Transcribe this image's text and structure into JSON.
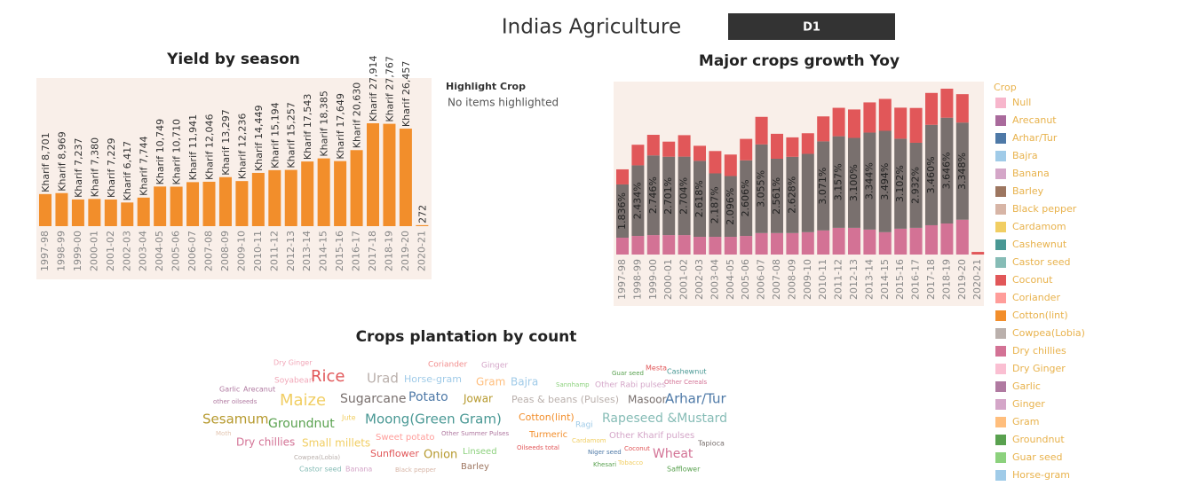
{
  "header": {
    "title": "Indias Agriculture",
    "filter": "D1"
  },
  "chart_data": [
    {
      "type": "bar",
      "title": "Yield by season",
      "categories": [
        "1997-98",
        "1998-99",
        "1999-00",
        "2000-01",
        "2001-02",
        "2002-03",
        "2003-04",
        "2004-05",
        "2005-06",
        "2006-07",
        "2007-08",
        "2008-09",
        "2009-10",
        "2010-11",
        "2011-12",
        "2012-13",
        "2013-14",
        "2014-15",
        "2015-16",
        "2016-17",
        "2017-18",
        "2018-19",
        "2019-20",
        "2020-21"
      ],
      "values": [
        8701,
        8969,
        7237,
        7380,
        7229,
        6417,
        7744,
        10749,
        10710,
        11941,
        12046,
        13297,
        12236,
        14449,
        15194,
        15257,
        17543,
        18385,
        17649,
        20630,
        27914,
        27767,
        26457,
        272
      ],
      "value_labels": [
        "8,701",
        "8,969",
        "7,237",
        "7,380",
        "7,229",
        "6,417",
        "7,744",
        "10,749",
        "10,710",
        "11,941",
        "12,046",
        "13,297",
        "12,236",
        "14,449",
        "15,194",
        "15,257",
        "17,543",
        "18,385",
        "17,649",
        "20,630",
        "27,914",
        "27,767",
        "26,457",
        "272"
      ],
      "season_labels": [
        "Kharif",
        "Kharif",
        "Kharif",
        "Kharif",
        "Kharif",
        "Kharif",
        "Kharif",
        "Kharif",
        "Kharif",
        "Kharif",
        "Kharif",
        "Kharif",
        "Kharif",
        "Kharif",
        "Kharif",
        "Kharif",
        "Kharif",
        "Kharif",
        "Kharif",
        "Kharif",
        "Kharif",
        "Kharif",
        "Kharif",
        null
      ],
      "color": "#f28e2b"
    },
    {
      "type": "stacked_bar",
      "title": "Major crops growth Yoy",
      "categories": [
        "1997-98",
        "1998-99",
        "1999-00",
        "2000-01",
        "2001-02",
        "2002-03",
        "2003-04",
        "2004-05",
        "2005-06",
        "2006-07",
        "2007-08",
        "2008-09",
        "2009-10",
        "2010-11",
        "2011-12",
        "2012-13",
        "2013-14",
        "2014-15",
        "2015-16",
        "2016-17",
        "2017-18",
        "2018-19",
        "2019-20",
        "2020-21"
      ],
      "series": [
        {
          "color": "#d37295",
          "values": [
            0.58,
            0.64,
            0.67,
            0.67,
            0.67,
            0.61,
            0.61,
            0.61,
            0.64,
            0.74,
            0.74,
            0.74,
            0.77,
            0.83,
            0.92,
            0.92,
            0.86,
            0.77,
            0.89,
            0.92,
            1.01,
            1.07,
            1.2,
            null
          ]
        },
        {
          "color": "#79706e",
          "values": [
            1.836,
            2.434,
            2.746,
            2.701,
            2.704,
            2.618,
            2.187,
            2.096,
            2.606,
            3.055,
            2.561,
            2.628,
            2.7,
            3.071,
            3.157,
            3.1,
            3.344,
            3.494,
            3.102,
            2.932,
            3.46,
            3.646,
            3.348,
            null
          ],
          "value_labels": [
            "1.836%",
            "2.434%",
            "2.746%",
            "2.701%",
            "2.704%",
            "2.618%",
            "2.187%",
            "2.096%",
            "2.606%",
            "3.055%",
            "2.561%",
            "2.628%",
            null,
            "3.071%",
            "3.157%",
            "3.100%",
            "3.344%",
            "3.494%",
            "3.102%",
            "2.932%",
            "3.460%",
            "3.646%",
            "3.348%",
            null
          ]
        },
        {
          "color": "#e15759",
          "values": [
            0.52,
            0.71,
            0.71,
            0.52,
            0.74,
            0.52,
            0.77,
            0.74,
            0.74,
            0.95,
            0.86,
            0.67,
            0.71,
            0.86,
            0.98,
            0.98,
            1.04,
            1.1,
            1.07,
            1.2,
            1.1,
            1.0,
            0.98,
            0.09
          ]
        }
      ],
      "legend_title": "Crop",
      "legend": [
        {
          "name": "Null",
          "color": "#f7b6cc"
        },
        {
          "name": "Arecanut",
          "color": "#a96a9c"
        },
        {
          "name": "Arhar/Tur",
          "color": "#4e79a7"
        },
        {
          "name": "Bajra",
          "color": "#a0cbe8"
        },
        {
          "name": "Banana",
          "color": "#d4a6c8"
        },
        {
          "name": "Barley",
          "color": "#9d7660"
        },
        {
          "name": "Black pepper",
          "color": "#d7b5a6"
        },
        {
          "name": "Cardamom",
          "color": "#f1ce63"
        },
        {
          "name": "Cashewnut",
          "color": "#499894"
        },
        {
          "name": "Castor seed",
          "color": "#86bcb6"
        },
        {
          "name": "Coconut",
          "color": "#e15759"
        },
        {
          "name": "Coriander",
          "color": "#ff9d9a"
        },
        {
          "name": "Cotton(lint)",
          "color": "#f28e2b"
        },
        {
          "name": "Cowpea(Lobia)",
          "color": "#bab0ac"
        },
        {
          "name": "Dry chillies",
          "color": "#d37295"
        },
        {
          "name": "Dry Ginger",
          "color": "#fabfd2"
        },
        {
          "name": "Garlic",
          "color": "#b07aa1"
        },
        {
          "name": "Ginger",
          "color": "#d4a6c8"
        },
        {
          "name": "Gram",
          "color": "#ffbe7d"
        },
        {
          "name": "Groundnut",
          "color": "#59a14f"
        },
        {
          "name": "Guar seed",
          "color": "#8cd17d"
        },
        {
          "name": "Horse-gram",
          "color": "#a0cbe8"
        }
      ]
    }
  ],
  "highlight": {
    "title": "Highlight Crop",
    "text": "No items highlighted"
  },
  "word_cloud": {
    "title": "Crops plantation by count",
    "words": [
      {
        "text": "Dry Ginger",
        "color": "#f1a7b8"
      },
      {
        "text": "Coriander",
        "color": "#f28e8e"
      },
      {
        "text": "Ginger",
        "color": "#d4a6c8"
      },
      {
        "text": "Mesta",
        "color": "#e15759"
      },
      {
        "text": "Cashewnut",
        "color": "#499894"
      },
      {
        "text": "Guar seed",
        "color": "#59a14f"
      },
      {
        "text": "Soyabean",
        "color": "#f1a7b8"
      },
      {
        "text": "Rice",
        "color": "#e15759"
      },
      {
        "text": "Urad",
        "color": "#bab0ac"
      },
      {
        "text": "Horse-gram",
        "color": "#a0cbe8"
      },
      {
        "text": "Gram",
        "color": "#ffbe7d"
      },
      {
        "text": "Bajra",
        "color": "#a0cbe8"
      },
      {
        "text": "Other Rabi pulses",
        "color": "#d4a6c8"
      },
      {
        "text": "Other Cereals",
        "color": "#d37295"
      },
      {
        "text": "Sannhamp",
        "color": "#8cd17d"
      },
      {
        "text": "Garlic",
        "color": "#b07aa1"
      },
      {
        "text": "Arecanut",
        "color": "#b07aa1"
      },
      {
        "text": "other oilseeds",
        "color": "#b07aa1"
      },
      {
        "text": "Maize",
        "color": "#f1ce63"
      },
      {
        "text": "Sugarcane",
        "color": "#79706e"
      },
      {
        "text": "Potato",
        "color": "#4e79a7"
      },
      {
        "text": "Jowar",
        "color": "#b6992d"
      },
      {
        "text": "Peas & beans (Pulses)",
        "color": "#bab0ac"
      },
      {
        "text": "Masoor",
        "color": "#79706e"
      },
      {
        "text": "Arhar/Tur",
        "color": "#4e79a7"
      },
      {
        "text": "Sesamum",
        "color": "#b6992d"
      },
      {
        "text": "Groundnut",
        "color": "#59a14f"
      },
      {
        "text": "Jute",
        "color": "#f1ce63"
      },
      {
        "text": "Moong(Green Gram)",
        "color": "#499894"
      },
      {
        "text": "Cotton(lint)",
        "color": "#f28e2b"
      },
      {
        "text": "Rapeseed &Mustard",
        "color": "#86bcb6"
      },
      {
        "text": "Ragi",
        "color": "#a0cbe8"
      },
      {
        "text": "Moth",
        "color": "#e3c5b0"
      },
      {
        "text": "Dry chillies",
        "color": "#d37295"
      },
      {
        "text": "Small millets",
        "color": "#f1ce63"
      },
      {
        "text": "Sweet potato",
        "color": "#ff9d9a"
      },
      {
        "text": "Other Summer Pulses",
        "color": "#b07aa1"
      },
      {
        "text": "Turmeric",
        "color": "#f28e2b"
      },
      {
        "text": "Cardamom",
        "color": "#f1ce63"
      },
      {
        "text": "Other Kharif pulses",
        "color": "#d4a6c8"
      },
      {
        "text": "Tapioca",
        "color": "#79706e"
      },
      {
        "text": "Oilseeds total",
        "color": "#e15759"
      },
      {
        "text": "Niger seed",
        "color": "#4e79a7"
      },
      {
        "text": "Coconut",
        "color": "#e15759"
      },
      {
        "text": "Sunflower",
        "color": "#e15759"
      },
      {
        "text": "Onion",
        "color": "#b6992d"
      },
      {
        "text": "Linseed",
        "color": "#8cd17d"
      },
      {
        "text": "Wheat",
        "color": "#d37295"
      },
      {
        "text": "Cowpea(Lobia)",
        "color": "#bab0ac"
      },
      {
        "text": "Khesari",
        "color": "#59a14f"
      },
      {
        "text": "Tobacco",
        "color": "#f1ce63"
      },
      {
        "text": "Barley",
        "color": "#9d7660"
      },
      {
        "text": "Castor seed",
        "color": "#86bcb6"
      },
      {
        "text": "Banana",
        "color": "#d4a6c8"
      },
      {
        "text": "Black pepper",
        "color": "#d7b5a6"
      },
      {
        "text": "Safflower",
        "color": "#59a14f"
      }
    ]
  }
}
